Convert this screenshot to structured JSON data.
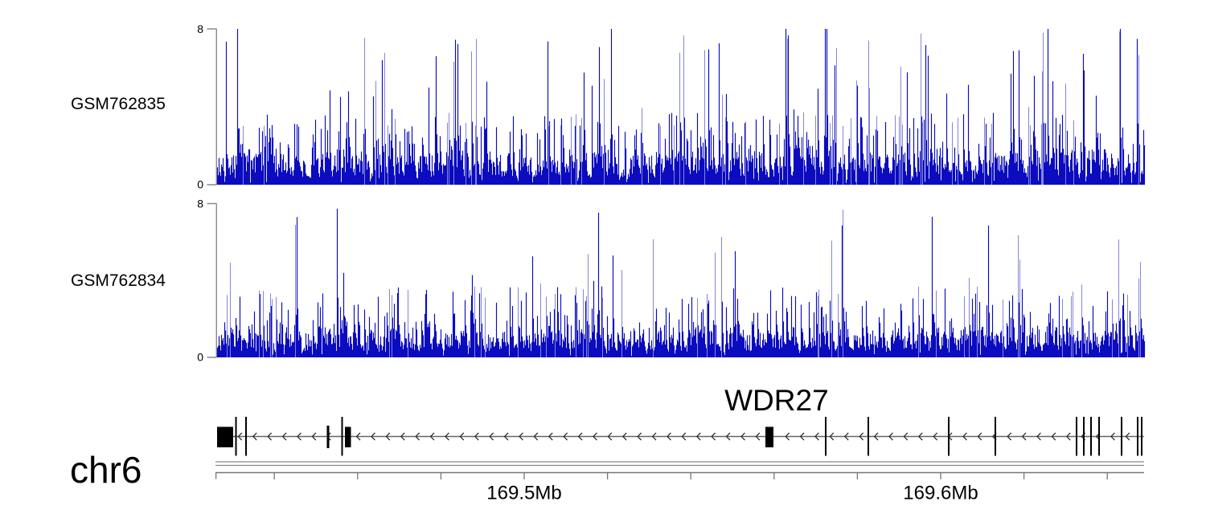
{
  "figure": {
    "background_color": "#ffffff",
    "chromosome_label": "chr6",
    "tracks": [
      {
        "label": "GSM762835"
      },
      {
        "label": "GSM762834"
      }
    ]
  },
  "chart_data": {
    "type": "area",
    "description": "Genome browser view: dense read-coverage signal tracks for two samples over chr6 ~169.426-169.649 Mb, with WDR27 gene model (minus strand) and genomic coordinate scale bar",
    "x_units": "Mb",
    "x_range_mb": [
      169.426,
      169.649
    ],
    "ylim": [
      0,
      8
    ],
    "y_axis_ticks": [
      0,
      8
    ],
    "grid": false,
    "signal_color_dark": "#0b0bc0",
    "signal_color_light": "#8585da",
    "axis_color": "#8a8a8a",
    "series": [
      {
        "name": "GSM762835",
        "kind": "dense-coverage",
        "seed": 762835,
        "mean_level": 1.05,
        "spike_prob": 0.27,
        "tall_spike_prob": 0.05,
        "max_value": 8,
        "clipped_peaks": true
      },
      {
        "name": "GSM762834",
        "kind": "dense-coverage",
        "seed": 762834,
        "mean_level": 0.92,
        "spike_prob": 0.22,
        "tall_spike_prob": 0.03,
        "max_value": 8,
        "clipped_peaks": false
      }
    ],
    "gene_model": {
      "name": "WDR27",
      "strand": "-",
      "label_center_mb": 169.5606,
      "features": [
        {
          "type": "wide_box",
          "start_mb": 169.42626,
          "end_mb": 169.43012
        },
        {
          "type": "tall_line",
          "mb": 169.43079
        },
        {
          "type": "tall_line",
          "mb": 169.4332
        },
        {
          "type": "small_bar",
          "mb": 169.4529
        },
        {
          "type": "tall_line",
          "mb": 169.45627
        },
        {
          "type": "box",
          "start_mb": 169.45695,
          "end_mb": 169.4584
        },
        {
          "type": "box",
          "start_mb": 169.55792,
          "end_mb": 169.55985
        },
        {
          "type": "tall_line",
          "mb": 169.5724
        },
        {
          "type": "tall_line",
          "mb": 169.58263
        },
        {
          "type": "tall_line",
          "mb": 169.60193
        },
        {
          "type": "tall_line",
          "mb": 169.61313
        },
        {
          "type": "tall_line",
          "mb": 169.63263
        },
        {
          "type": "tall_line",
          "mb": 169.63436
        },
        {
          "type": "tall_line",
          "mb": 169.6361
        },
        {
          "type": "tall_line",
          "mb": 169.63803
        },
        {
          "type": "tall_line",
          "mb": 169.64344
        },
        {
          "type": "tall_line",
          "mb": 169.6473
        },
        {
          "type": "tall_line",
          "mb": 169.64826
        }
      ]
    },
    "x_ticks_mb": [
      169.44,
      169.46,
      169.48,
      169.5,
      169.52,
      169.54,
      169.56,
      169.58,
      169.6,
      169.62,
      169.64
    ],
    "labeled_ticks": [
      {
        "mb": 169.5,
        "label": "169.5Mb"
      },
      {
        "mb": 169.6,
        "label": "169.6Mb"
      }
    ]
  }
}
